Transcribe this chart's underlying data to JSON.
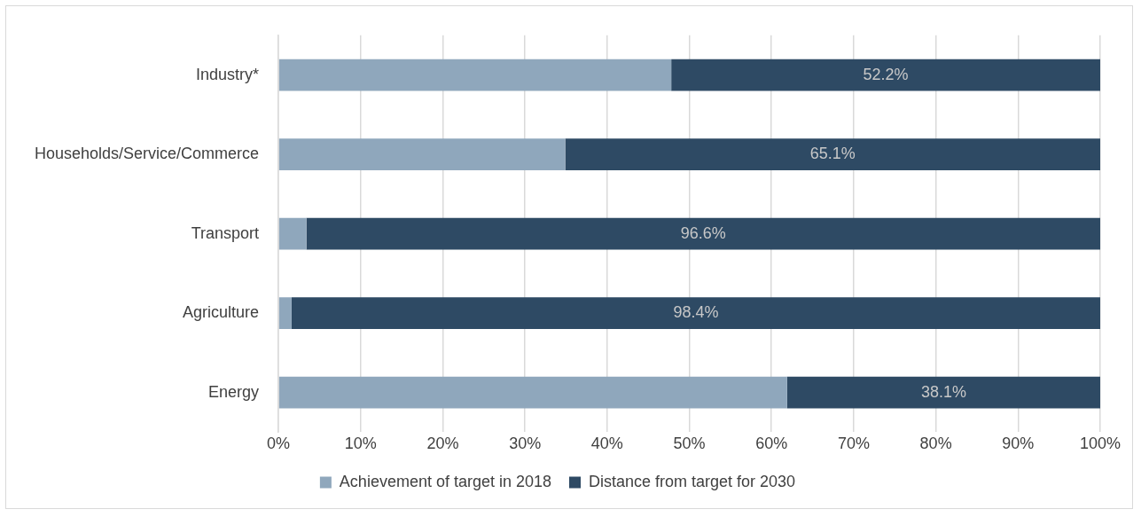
{
  "chart_data": {
    "type": "bar",
    "orientation": "horizontal",
    "stacked": true,
    "categories": [
      "Industry*",
      "Households/Service/Commerce",
      "Transport",
      "Agriculture",
      "Energy"
    ],
    "series": [
      {
        "name": "Achievement of target in 2018",
        "color": "#8fa7bc",
        "values": [
          47.8,
          34.9,
          3.4,
          1.6,
          61.9
        ]
      },
      {
        "name": "Distance from target for 2030",
        "color": "#2e4a64",
        "values": [
          52.2,
          65.1,
          96.6,
          98.4,
          38.1
        ],
        "value_labels": [
          "52.2%",
          "65.1%",
          "96.6%",
          "98.4%",
          "38.1%"
        ]
      }
    ],
    "xlim": [
      0,
      100
    ],
    "xticks": [
      {
        "value": 0,
        "label": "0%"
      },
      {
        "value": 10,
        "label": "10%"
      },
      {
        "value": 20,
        "label": "20%"
      },
      {
        "value": 30,
        "label": "30%"
      },
      {
        "value": 40,
        "label": "40%"
      },
      {
        "value": 50,
        "label": "50%"
      },
      {
        "value": 60,
        "label": "60%"
      },
      {
        "value": 70,
        "label": "70%"
      },
      {
        "value": 80,
        "label": "80%"
      },
      {
        "value": 90,
        "label": "90%"
      },
      {
        "value": 100,
        "label": "100%"
      }
    ],
    "grid": "x",
    "legend": "bottom"
  }
}
